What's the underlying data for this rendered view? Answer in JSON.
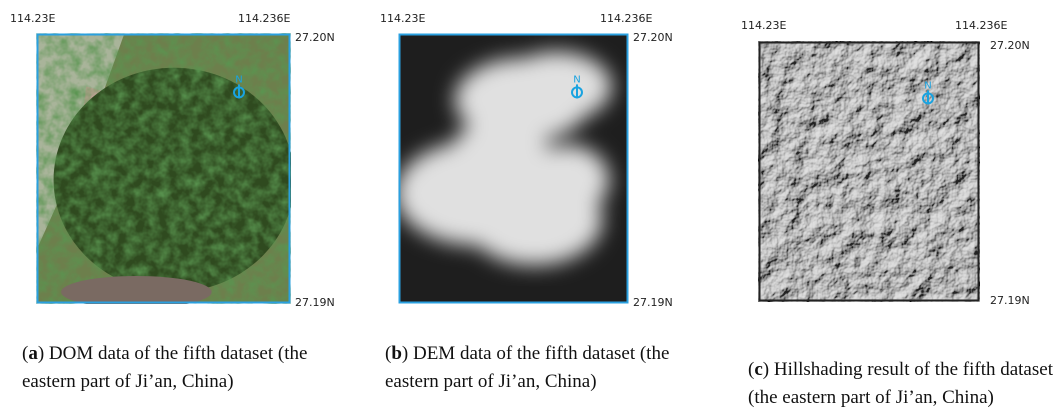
{
  "panels": [
    {
      "lon_left": "114.23E",
      "lon_right": "114.236E",
      "lat_top": "27.20N",
      "lat_bottom": "27.19N",
      "north": "N",
      "caption": {
        "open": "(",
        "label": "a",
        "text": ") DOM data of the fifth dataset (the eastern part of Ji’an, China)"
      }
    },
    {
      "lon_left": "114.23E",
      "lon_right": "114.236E",
      "lat_top": "27.20N",
      "lat_bottom": "27.19N",
      "north": "N",
      "caption": {
        "open": "(",
        "label": "b",
        "text": ") DEM data of the fifth dataset (the eastern part of Ji’an, China)"
      }
    },
    {
      "lon_left": "114.23E",
      "lon_right": "114.236E",
      "lat_top": "27.20N",
      "lat_bottom": "27.19N",
      "north": "N",
      "caption": {
        "open": "(",
        "label": "c",
        "text": ") Hillshading result of the fifth dataset (the eastern part of Ji’an, China)"
      }
    }
  ]
}
